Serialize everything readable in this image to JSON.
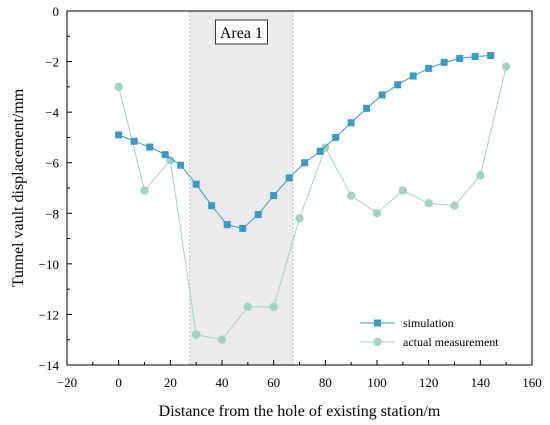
{
  "chart_data": {
    "type": "line",
    "xlabel": "Distance from the hole of existing station/m",
    "ylabel": "Tunnel vault displacement/mm",
    "xlim": [
      -20,
      160
    ],
    "ylim": [
      -14,
      0
    ],
    "xticks": [
      -20,
      0,
      20,
      40,
      60,
      80,
      100,
      120,
      140,
      160
    ],
    "yticks": [
      0,
      -2,
      -4,
      -6,
      -8,
      -10,
      -12,
      -14
    ],
    "grid": false,
    "legend_position": "bottom-right",
    "annotations": [
      {
        "type": "shaded-region",
        "label": "Area 1",
        "x_range": [
          27.5,
          67.5
        ],
        "color": "#ebebeb"
      }
    ],
    "series": [
      {
        "name": "simulation",
        "marker": "square",
        "color": "#3a98c9",
        "x": [
          0,
          6,
          12,
          18,
          24,
          30,
          36,
          42,
          48,
          54,
          60,
          66,
          72,
          78,
          84,
          90,
          96,
          102,
          108,
          114,
          120,
          126,
          132,
          138,
          144
        ],
        "y": [
          -4.9,
          -5.15,
          -5.38,
          -5.68,
          -6.1,
          -6.85,
          -7.7,
          -8.45,
          -8.6,
          -8.05,
          -7.3,
          -6.6,
          -6.0,
          -5.55,
          -5.0,
          -4.42,
          -3.85,
          -3.32,
          -2.92,
          -2.57,
          -2.27,
          -2.03,
          -1.88,
          -1.8,
          -1.76
        ]
      },
      {
        "name": "actual measurement",
        "marker": "circle",
        "color": "#9fd3c3",
        "x": [
          0,
          10,
          20,
          30,
          40,
          50,
          60,
          70,
          80,
          90,
          100,
          110,
          120,
          130,
          140,
          150
        ],
        "y": [
          -3.0,
          -7.1,
          -5.9,
          -12.8,
          -13.0,
          -11.7,
          -11.7,
          -8.2,
          -5.4,
          -7.3,
          -8.0,
          -7.1,
          -7.6,
          -7.7,
          -6.5,
          -2.2
        ]
      }
    ]
  }
}
